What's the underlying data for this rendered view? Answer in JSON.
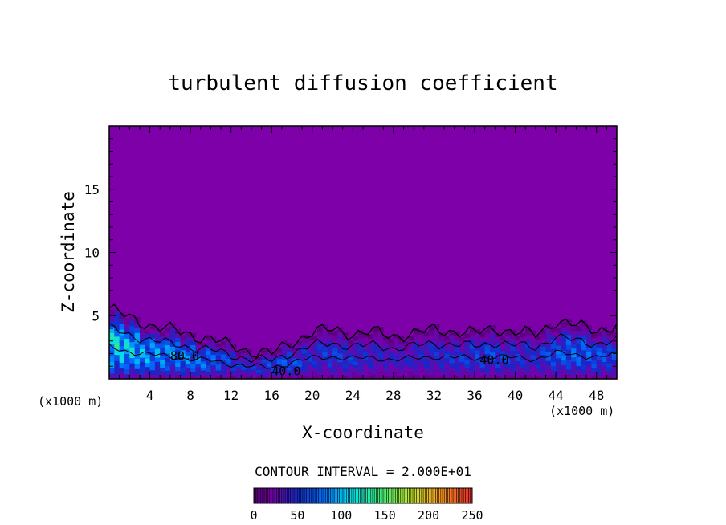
{
  "chart_data": {
    "type": "heatmap",
    "title": "turbulent diffusion coefficient",
    "xlabel": "X-coordinate",
    "ylabel": "Z-coordinate",
    "x_unit_left": "(x1000 m)",
    "x_unit_right": "(x1000 m)",
    "xlim": [
      0,
      50
    ],
    "ylim": [
      0,
      20
    ],
    "x_ticks": [
      4,
      8,
      12,
      16,
      20,
      24,
      28,
      32,
      36,
      40,
      44,
      48
    ],
    "x_tick_labels": [
      "4",
      "8",
      "12",
      "16",
      "20",
      "24",
      "28",
      "32",
      "36",
      "40",
      "44",
      "48"
    ],
    "y_ticks": [
      5,
      10,
      15
    ],
    "y_tick_labels": [
      "5",
      "10",
      "15"
    ],
    "contour_labels": [
      {
        "text": "80.0",
        "x": 6.0,
        "z": 1.8
      },
      {
        "text": "40.0",
        "x": 36.5,
        "z": 1.5
      },
      {
        "text": "40.0",
        "x": 16.0,
        "z": 0.6
      }
    ],
    "contour_interval_text": "CONTOUR INTERVAL = 2.000E+01",
    "colorbar": {
      "min": 0,
      "max": 250,
      "ticks": [
        0,
        50,
        100,
        150,
        200,
        250
      ],
      "tick_labels": [
        "0",
        "50",
        "100",
        "150",
        "200",
        "250"
      ]
    },
    "field_columns": [
      {
        "x": 0.5,
        "z_top": 5.4,
        "peak": 140
      },
      {
        "x": 2.0,
        "z_top": 4.8,
        "peak": 130
      },
      {
        "x": 4.0,
        "z_top": 4.3,
        "peak": 110
      },
      {
        "x": 6.0,
        "z_top": 3.9,
        "peak": 105
      },
      {
        "x": 8.0,
        "z_top": 3.5,
        "peak": 100
      },
      {
        "x": 10.0,
        "z_top": 3.2,
        "peak": 90
      },
      {
        "x": 12.0,
        "z_top": 2.6,
        "peak": 70
      },
      {
        "x": 14.0,
        "z_top": 2.2,
        "peak": 60
      },
      {
        "x": 16.0,
        "z_top": 2.0,
        "peak": 75
      },
      {
        "x": 18.0,
        "z_top": 2.9,
        "peak": 80
      },
      {
        "x": 20.0,
        "z_top": 3.7,
        "peak": 60
      },
      {
        "x": 22.0,
        "z_top": 3.9,
        "peak": 70
      },
      {
        "x": 24.0,
        "z_top": 3.6,
        "peak": 65
      },
      {
        "x": 26.0,
        "z_top": 3.7,
        "peak": 55
      },
      {
        "x": 28.0,
        "z_top": 3.4,
        "peak": 50
      },
      {
        "x": 30.0,
        "z_top": 3.6,
        "peak": 55
      },
      {
        "x": 32.0,
        "z_top": 3.9,
        "peak": 60
      },
      {
        "x": 34.0,
        "z_top": 3.8,
        "peak": 65
      },
      {
        "x": 36.0,
        "z_top": 3.6,
        "peak": 70
      },
      {
        "x": 38.0,
        "z_top": 4.0,
        "peak": 75
      },
      {
        "x": 40.0,
        "z_top": 3.7,
        "peak": 65
      },
      {
        "x": 42.0,
        "z_top": 3.5,
        "peak": 60
      },
      {
        "x": 44.0,
        "z_top": 4.6,
        "peak": 85
      },
      {
        "x": 46.0,
        "z_top": 4.2,
        "peak": 90
      },
      {
        "x": 48.0,
        "z_top": 3.9,
        "peak": 80
      },
      {
        "x": 50.0,
        "z_top": 4.2,
        "peak": 75
      }
    ],
    "background_value": 0,
    "grid": false
  }
}
